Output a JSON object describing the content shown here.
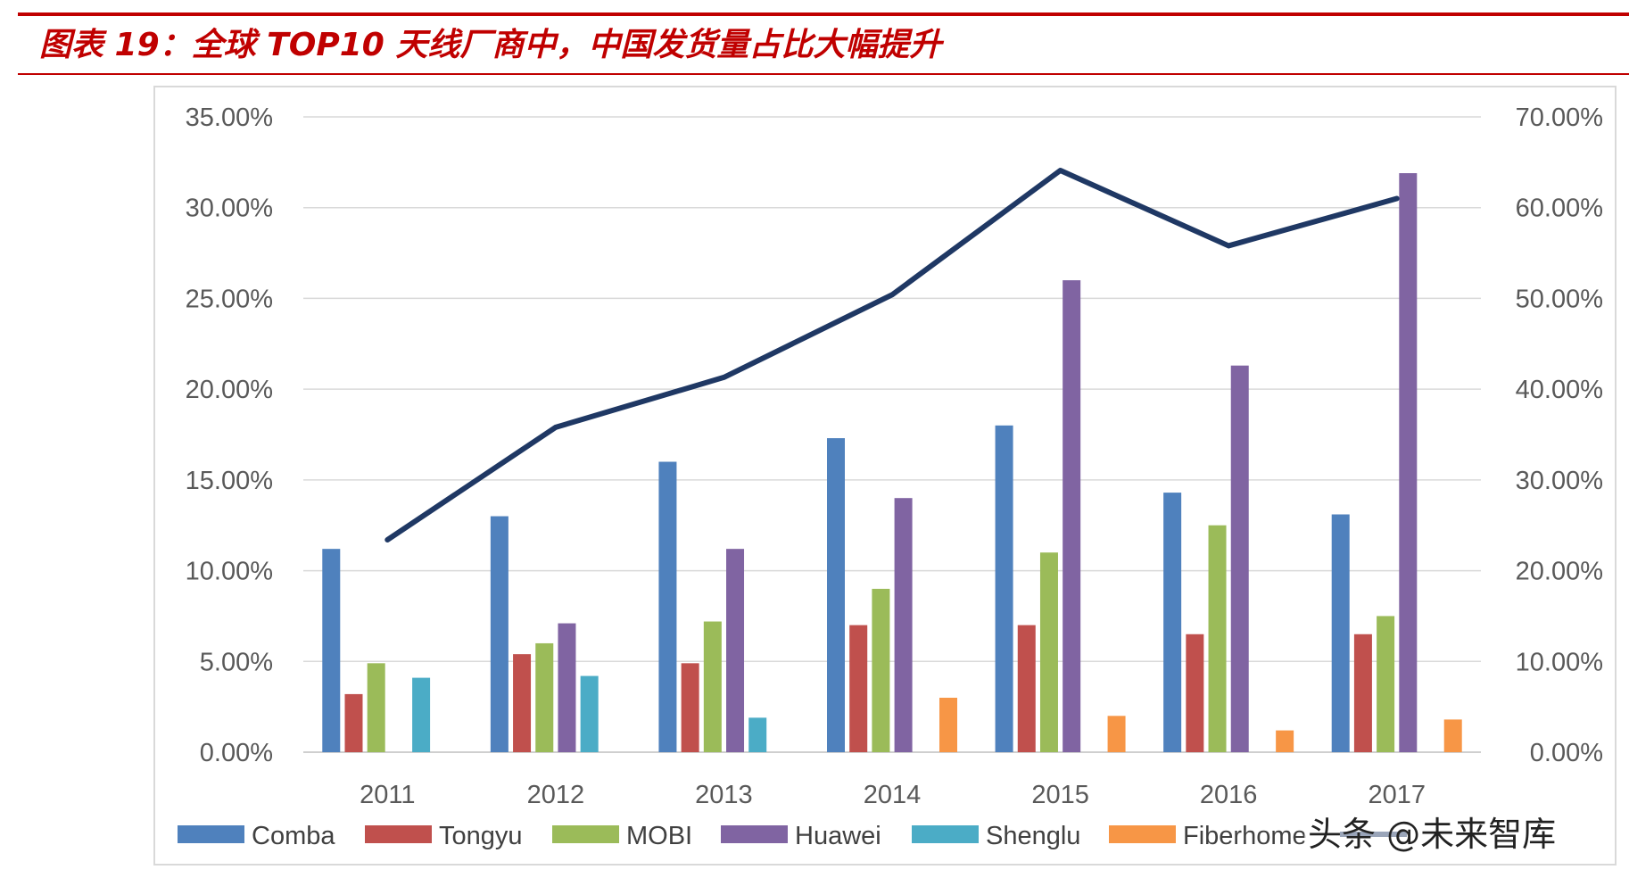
{
  "header": {
    "title": "图表 19：全球 TOP10 天线厂商中，中国发货量占比大幅提升",
    "accent_color": "#c00000"
  },
  "watermark": {
    "text": "头条 @未来智库"
  },
  "chart_data": {
    "type": "bar",
    "title": "",
    "categories": [
      "2011",
      "2012",
      "2013",
      "2014",
      "2015",
      "2016",
      "2017"
    ],
    "ylim": [
      0,
      35
    ],
    "y2lim": [
      0,
      70
    ],
    "yticks": [
      "0.00%",
      "5.00%",
      "10.00%",
      "15.00%",
      "20.00%",
      "25.00%",
      "30.00%",
      "35.00%"
    ],
    "y2ticks": [
      "0.00%",
      "10.00%",
      "20.00%",
      "30.00%",
      "40.00%",
      "50.00%",
      "60.00%",
      "70.00%"
    ],
    "grid": true,
    "legend_position": "bottom",
    "series": [
      {
        "name": "Comba",
        "color": "#4f81bd",
        "values": [
          11.2,
          13.0,
          16.0,
          17.3,
          18.0,
          14.3,
          13.1
        ]
      },
      {
        "name": "Tongyu",
        "color": "#c0504d",
        "values": [
          3.2,
          5.4,
          4.9,
          7.0,
          7.0,
          6.5,
          6.5
        ]
      },
      {
        "name": "MOBI",
        "color": "#9bbb59",
        "values": [
          4.9,
          6.0,
          7.2,
          9.0,
          11.0,
          12.5,
          7.5
        ]
      },
      {
        "name": "Huawei",
        "color": "#8064a2",
        "values": [
          null,
          7.1,
          11.2,
          14.0,
          26.0,
          21.3,
          31.9
        ]
      },
      {
        "name": "Shenglu",
        "color": "#4bacc6",
        "values": [
          4.1,
          4.2,
          1.9,
          null,
          null,
          null,
          null
        ]
      },
      {
        "name": "Fiberhome",
        "color": "#f79646",
        "values": [
          null,
          null,
          null,
          3.0,
          2.0,
          1.2,
          1.8
        ]
      }
    ],
    "line_series": {
      "name": "",
      "axis": "secondary",
      "color": "#1f3864",
      "values": [
        23.4,
        35.8,
        41.3,
        50.4,
        64.1,
        55.8,
        61.0
      ]
    }
  }
}
